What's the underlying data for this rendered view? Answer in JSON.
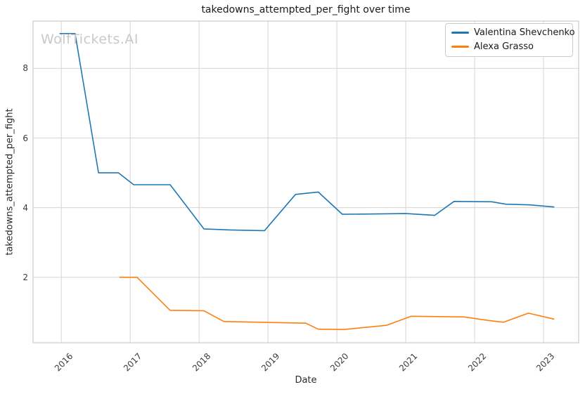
{
  "watermark": "WolfTickets.AI",
  "colors": {
    "grid": "#d5d5d5",
    "frame": "#cacaca",
    "series_blue": "#1f77b4",
    "series_orange": "#ff7f0e",
    "watermark_gray": "#c9c9c9"
  },
  "chart_data": {
    "type": "line",
    "title": "takedowns_attempted_per_fight over time",
    "xlabel": "Date",
    "ylabel": "takedowns_attempted_per_fight",
    "xlim": [
      2015.59,
      2023.51
    ],
    "ylim": [
      0.12,
      9.36
    ],
    "grid": true,
    "legend_position": "upper right",
    "xticks": [
      {
        "value": 2016,
        "label": "2016"
      },
      {
        "value": 2017,
        "label": "2017"
      },
      {
        "value": 2018,
        "label": "2018"
      },
      {
        "value": 2019,
        "label": "2019"
      },
      {
        "value": 2020,
        "label": "2020"
      },
      {
        "value": 2021,
        "label": "2021"
      },
      {
        "value": 2022,
        "label": "2022"
      },
      {
        "value": 2023,
        "label": "2023"
      }
    ],
    "yticks": [
      {
        "value": 2,
        "label": "2"
      },
      {
        "value": 4,
        "label": "4"
      },
      {
        "value": 6,
        "label": "6"
      },
      {
        "value": 8,
        "label": "8"
      }
    ],
    "series": [
      {
        "name": "Valentina Shevchenko",
        "color": "#1f77b4",
        "points": [
          [
            2015.98,
            9.0
          ],
          [
            2016.2,
            9.0
          ],
          [
            2016.54,
            5.0
          ],
          [
            2016.83,
            5.0
          ],
          [
            2017.05,
            4.66
          ],
          [
            2017.58,
            4.66
          ],
          [
            2018.07,
            3.39
          ],
          [
            2018.45,
            3.36
          ],
          [
            2018.95,
            3.34
          ],
          [
            2019.4,
            4.38
          ],
          [
            2019.73,
            4.45
          ],
          [
            2020.08,
            3.81
          ],
          [
            2020.6,
            3.82
          ],
          [
            2021.0,
            3.83
          ],
          [
            2021.42,
            3.78
          ],
          [
            2021.7,
            4.18
          ],
          [
            2022.25,
            4.17
          ],
          [
            2022.45,
            4.1
          ],
          [
            2022.8,
            4.08
          ],
          [
            2023.15,
            4.02
          ]
        ]
      },
      {
        "name": "Alexa Grasso",
        "color": "#ff7f0e",
        "points": [
          [
            2016.85,
            2.0
          ],
          [
            2017.1,
            2.0
          ],
          [
            2017.58,
            1.05
          ],
          [
            2018.07,
            1.04
          ],
          [
            2018.36,
            0.73
          ],
          [
            2018.9,
            0.71
          ],
          [
            2019.55,
            0.68
          ],
          [
            2019.73,
            0.51
          ],
          [
            2020.1,
            0.5
          ],
          [
            2020.72,
            0.62
          ],
          [
            2021.08,
            0.88
          ],
          [
            2021.85,
            0.86
          ],
          [
            2022.2,
            0.76
          ],
          [
            2022.42,
            0.71
          ],
          [
            2022.78,
            0.97
          ],
          [
            2023.15,
            0.8
          ]
        ]
      }
    ]
  }
}
